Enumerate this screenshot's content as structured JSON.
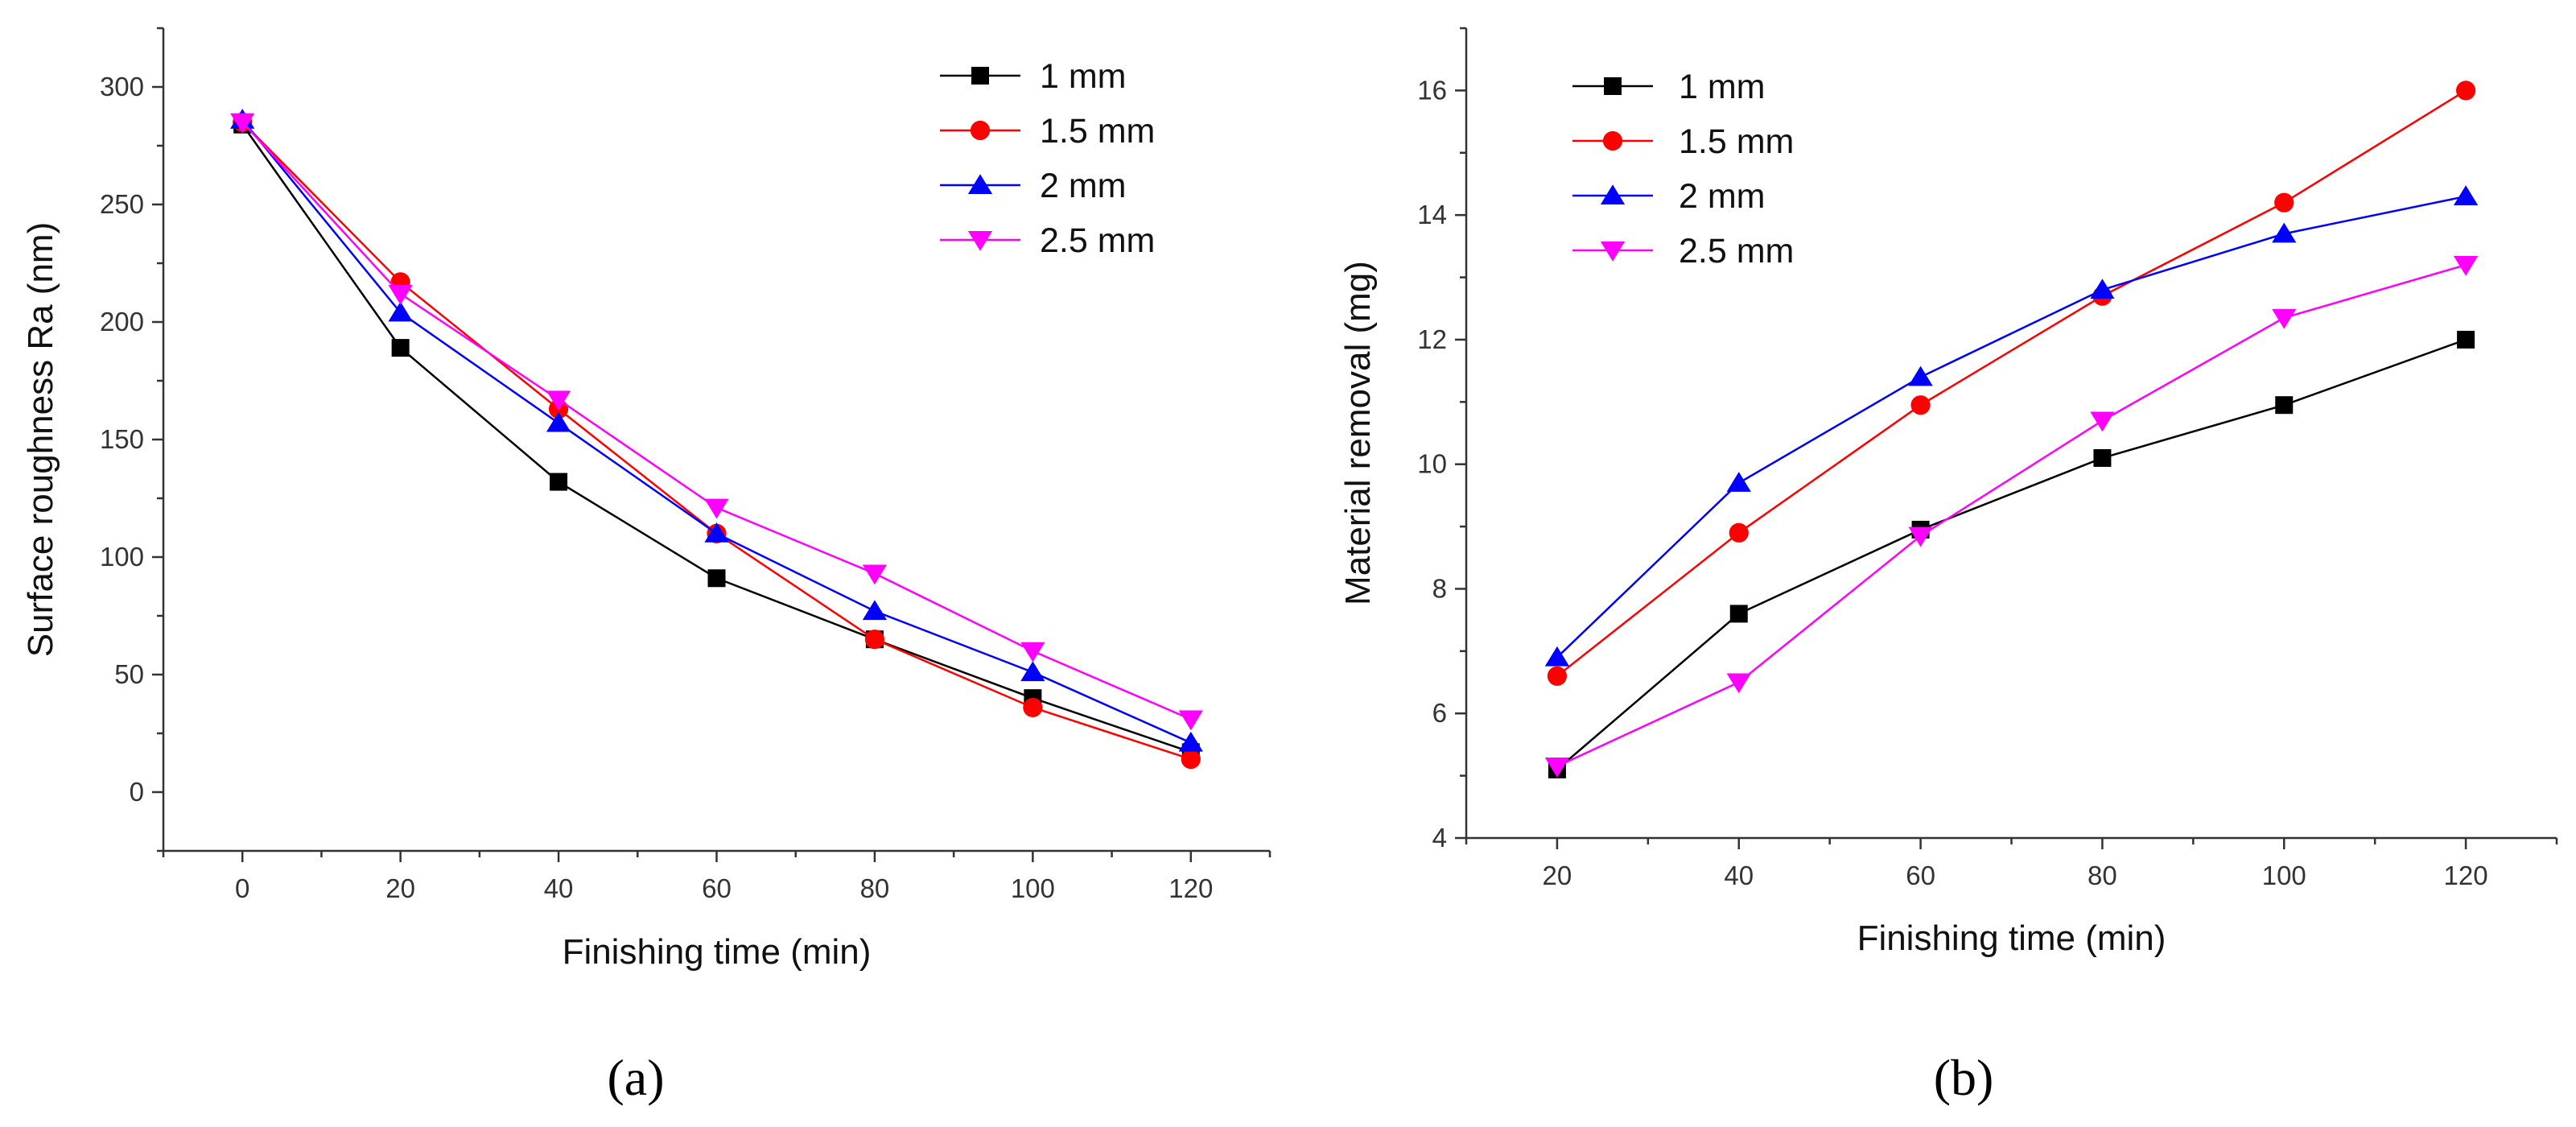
{
  "chart_data": [
    {
      "type": "line",
      "panel_label": "(a)",
      "xlabel": "Finishing time (min)",
      "ylabel": "Surface roughness Ra (nm)",
      "xlim": [
        -10,
        130
      ],
      "ylim": [
        -25,
        325
      ],
      "xticks": [
        0,
        20,
        40,
        60,
        80,
        100,
        120
      ],
      "yticks": [
        0,
        50,
        100,
        150,
        200,
        250,
        300
      ],
      "legend_position": "top-right",
      "x": [
        0,
        20,
        40,
        60,
        80,
        100,
        120
      ],
      "series": [
        {
          "name": "1 mm",
          "color": "#000000",
          "marker": "square",
          "values": [
            284,
            189,
            132,
            91,
            65,
            40,
            17
          ]
        },
        {
          "name": "1.5 mm",
          "color": "#ff0000",
          "marker": "circle",
          "values": [
            285,
            217,
            163,
            110,
            65,
            36,
            14
          ]
        },
        {
          "name": "2 mm",
          "color": "#0000ff",
          "marker": "triangle-up",
          "values": [
            286,
            204,
            157,
            110,
            77,
            51,
            21
          ]
        },
        {
          "name": "2.5 mm",
          "color": "#ff00ff",
          "marker": "triangle-down",
          "values": [
            285,
            212,
            167,
            121,
            93,
            60,
            31
          ]
        }
      ]
    },
    {
      "type": "line",
      "panel_label": "(b)",
      "xlabel": "Finishing time (min)",
      "ylabel": "Material removal (mg)",
      "xlim": [
        10,
        130
      ],
      "ylim": [
        4,
        17
      ],
      "xticks": [
        20,
        40,
        60,
        80,
        100,
        120
      ],
      "yticks": [
        4,
        6,
        8,
        10,
        12,
        14,
        16
      ],
      "legend_position": "top-left",
      "x": [
        20,
        40,
        60,
        80,
        100,
        120
      ],
      "series": [
        {
          "name": "1 mm",
          "color": "#000000",
          "marker": "square",
          "values": [
            5.1,
            7.6,
            8.95,
            10.1,
            10.95,
            12.0
          ]
        },
        {
          "name": "1.5 mm",
          "color": "#ff0000",
          "marker": "circle",
          "values": [
            6.6,
            8.9,
            10.95,
            12.7,
            14.2,
            16.0
          ]
        },
        {
          "name": "2 mm",
          "color": "#0000ff",
          "marker": "triangle-up",
          "values": [
            6.9,
            9.7,
            11.4,
            12.8,
            13.7,
            14.3
          ]
        },
        {
          "name": "2.5 mm",
          "color": "#ff00ff",
          "marker": "triangle-down",
          "values": [
            5.15,
            6.5,
            8.85,
            10.7,
            12.35,
            13.2
          ]
        }
      ]
    }
  ]
}
